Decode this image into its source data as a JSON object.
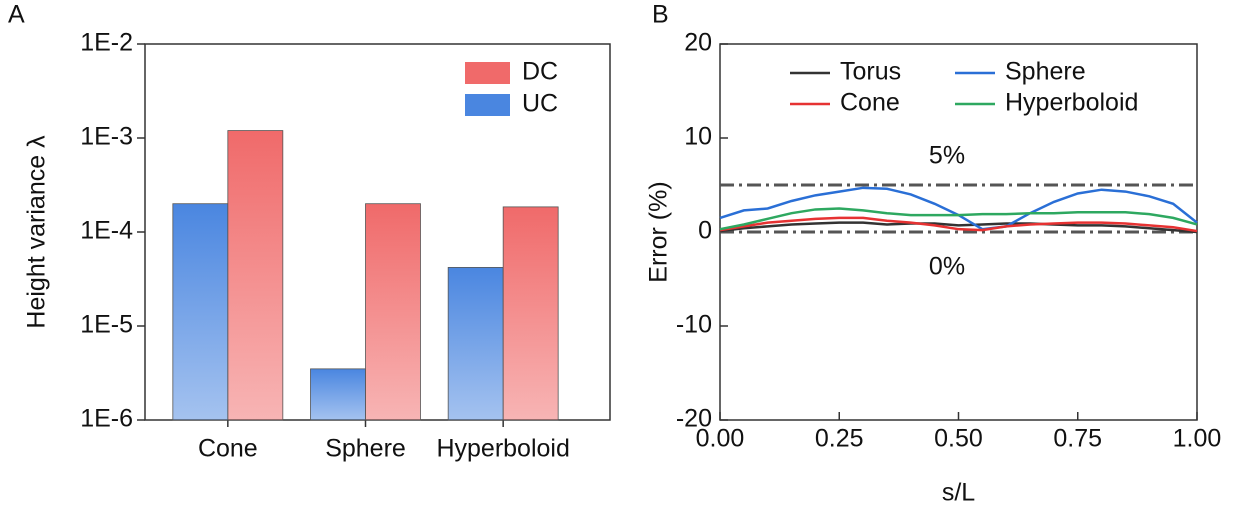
{
  "chart_data": [
    {
      "type": "bar",
      "panel_label": "A",
      "ylabel": "Height variance λ",
      "log_scale": true,
      "categories": [
        "Cone",
        "Sphere",
        "Hyperboloid"
      ],
      "series": [
        {
          "name": "UC",
          "color": "#4a86e0",
          "values": [
            0.0002,
            3.5e-06,
            4.2e-05
          ]
        },
        {
          "name": "DC",
          "color": "#f06a6a",
          "values": [
            0.0012,
            0.0002,
            0.000185
          ]
        }
      ],
      "ylim": [
        1e-06,
        0.01
      ],
      "yticks": [
        {
          "value": 1e-06,
          "label": "1E-6"
        },
        {
          "value": 1e-05,
          "label": "1E-5"
        },
        {
          "value": 0.0001,
          "label": "1E-4"
        },
        {
          "value": 0.001,
          "label": "1E-3"
        },
        {
          "value": 0.01,
          "label": "1E-2"
        }
      ],
      "legend": "upper right"
    },
    {
      "type": "line",
      "panel_label": "B",
      "xlabel": "s/L",
      "ylabel": "Error (%)",
      "x": [
        0,
        0.05,
        0.1,
        0.15,
        0.2,
        0.25,
        0.3,
        0.35,
        0.4,
        0.45,
        0.5,
        0.55,
        0.6,
        0.65,
        0.7,
        0.75,
        0.8,
        0.85,
        0.9,
        0.95,
        1.0
      ],
      "series": [
        {
          "name": "Torus",
          "color": "#333333",
          "values": [
            0.1,
            0.4,
            0.6,
            0.8,
            0.9,
            1.0,
            1.0,
            0.8,
            0.9,
            0.9,
            0.7,
            0.8,
            0.9,
            0.9,
            0.8,
            0.7,
            0.7,
            0.6,
            0.4,
            0.2,
            0.0
          ]
        },
        {
          "name": "Sphere",
          "color": "#2a6fd6",
          "values": [
            1.5,
            2.3,
            2.5,
            3.3,
            3.9,
            4.3,
            4.7,
            4.6,
            4.0,
            3.0,
            1.8,
            0.3,
            0.6,
            2.0,
            3.2,
            4.1,
            4.5,
            4.3,
            3.8,
            3.0,
            1.0
          ]
        },
        {
          "name": "Cone",
          "color": "#e63232",
          "values": [
            0.2,
            0.6,
            1.0,
            1.2,
            1.4,
            1.5,
            1.5,
            1.2,
            1.0,
            0.7,
            0.3,
            0.2,
            0.6,
            0.8,
            0.9,
            1.0,
            1.0,
            0.9,
            0.7,
            0.5,
            0.1
          ]
        },
        {
          "name": "Hyperboloid",
          "color": "#2ea860",
          "values": [
            0.3,
            0.8,
            1.4,
            2.0,
            2.4,
            2.5,
            2.3,
            2.0,
            1.8,
            1.8,
            1.8,
            1.9,
            1.9,
            2.0,
            2.0,
            2.1,
            2.1,
            2.1,
            1.9,
            1.5,
            0.8
          ]
        }
      ],
      "xlim": [
        0,
        1
      ],
      "ylim": [
        -20,
        20
      ],
      "xticks": [
        {
          "value": 0,
          "label": "0.00"
        },
        {
          "value": 0.25,
          "label": "0.25"
        },
        {
          "value": 0.5,
          "label": "0.50"
        },
        {
          "value": 0.75,
          "label": "0.75"
        },
        {
          "value": 1,
          "label": "1.00"
        }
      ],
      "yticks": [
        -20,
        -10,
        0,
        10,
        20
      ],
      "reference_lines": [
        {
          "value": 5,
          "label": "5%"
        },
        {
          "value": 0,
          "label": "0%"
        }
      ],
      "legend": "upper left"
    }
  ]
}
